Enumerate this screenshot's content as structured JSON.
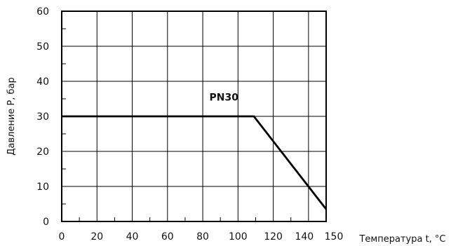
{
  "chart_data": {
    "type": "line",
    "title": "",
    "xlabel": "Температура t, °C",
    "ylabel": "Давление P, бар",
    "xlim": [
      0,
      150
    ],
    "ylim": [
      0,
      60
    ],
    "x_ticks": [
      "0",
      "20",
      "40",
      "60",
      "80",
      "100",
      "120",
      "140",
      "150"
    ],
    "y_ticks": [
      "0",
      "10",
      "20",
      "30",
      "40",
      "50",
      "60"
    ],
    "grid": true,
    "series": [
      {
        "name": "PN30",
        "x": [
          0,
          109,
          150
        ],
        "y": [
          30,
          30,
          3.5
        ]
      }
    ],
    "annotations": [
      {
        "text": "PN30",
        "x": 92,
        "y": 34.5
      }
    ],
    "line_color": "#000000",
    "grid_color": "#000000"
  }
}
